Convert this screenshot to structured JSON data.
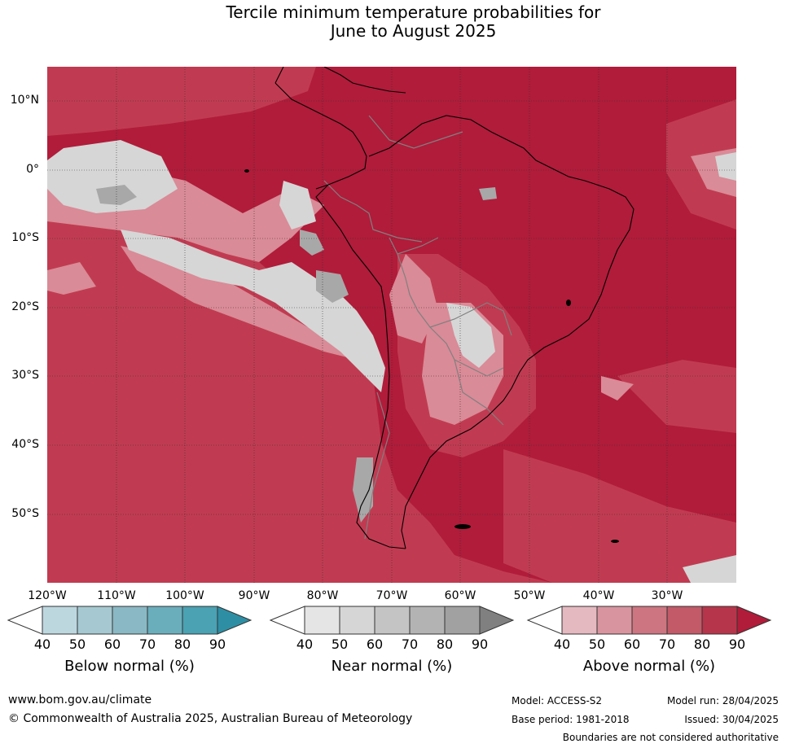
{
  "title_line1": "Tercile minimum temperature probabilities for",
  "title_line2": "June to August 2025",
  "lat_labels": [
    "10°N",
    "0°",
    "10°S",
    "20°S",
    "30°S",
    "40°S",
    "50°S"
  ],
  "lon_labels": [
    "120°W",
    "110°W",
    "100°W",
    "90°W",
    "80°W",
    "70°W",
    "60°W",
    "50°W",
    "40°W",
    "30°W"
  ],
  "legends": [
    {
      "label": "Below normal (%)",
      "ticks": [
        "40",
        "50",
        "60",
        "70",
        "80",
        "90"
      ],
      "colors": [
        "#ffffff",
        "#bdd7df",
        "#a6c9d1",
        "#8ab8c5",
        "#6aaebc",
        "#4aa2b3",
        "#2e8fa4"
      ]
    },
    {
      "label": "Near normal (%)",
      "ticks": [
        "40",
        "50",
        "60",
        "70",
        "80",
        "90"
      ],
      "colors": [
        "#ffffff",
        "#e5e5e5",
        "#d6d6d6",
        "#c4c4c4",
        "#b3b3b3",
        "#a1a1a1",
        "#808080"
      ]
    },
    {
      "label": "Above normal (%)",
      "ticks": [
        "40",
        "50",
        "60",
        "70",
        "80",
        "90"
      ],
      "colors": [
        "#ffffff",
        "#e4b9bf",
        "#d8959f",
        "#cd7580",
        "#c25a68",
        "#b7354a",
        "#b01c3a"
      ]
    }
  ],
  "footer": {
    "website": "www.bom.gov.au/climate",
    "copyright": "© Commonwealth of Australia 2025, Australian Bureau of Meteorology",
    "model": "Model: ACCESS-S2",
    "model_run": "Model run: 28/04/2025",
    "base_period": "Base period: 1981-2018",
    "issued": "Issued: 30/04/2025",
    "disclaimer": "Boundaries are not considered authoritative"
  },
  "map_colors": {
    "above_high": "#b01c3a",
    "above_mid": "#c03b51",
    "above_low": "#d98b97",
    "near_light": "#d6d6d6",
    "near_dark": "#a8a8a8",
    "coast": "#000000",
    "border": "#808080",
    "grid": "#333333"
  }
}
